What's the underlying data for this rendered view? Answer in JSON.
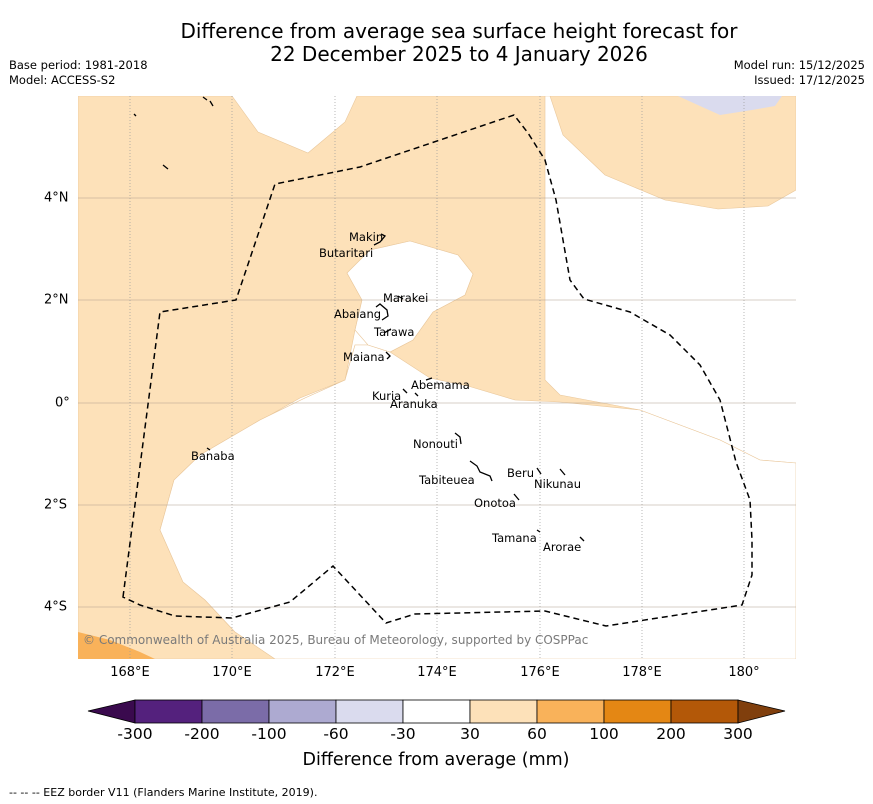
{
  "title": {
    "line1": "Difference from average sea surface height forecast for",
    "line2": "22 December 2025 to 4 January 2026"
  },
  "meta_left": {
    "base_period": "Base period: 1981-2018",
    "model": "Model: ACCESS-S2"
  },
  "meta_right": {
    "model_run": "Model run: 15/12/2025",
    "issued": "Issued: 17/12/2025"
  },
  "map": {
    "lon_ticks": [
      "168°E",
      "170°E",
      "172°E",
      "174°E",
      "176°E",
      "178°E",
      "180°"
    ],
    "lat_ticks": [
      "4°N",
      "2°N",
      "0°",
      "2°S",
      "4°S"
    ],
    "islands": [
      "Makin",
      "Butaritari",
      "Marakei",
      "Abaiang",
      "Tarawa",
      "Maiana",
      "Abemama",
      "Kuria",
      "Aranuka",
      "Nonouti",
      "Banaba",
      "Tabiteuea",
      "Beru",
      "Nikunau",
      "Onotoa",
      "Tamana",
      "Arorae"
    ],
    "copyright": "© Commonwealth of Australia 2025, Bureau of Meteorology, supported by COSPPac"
  },
  "colorbar": {
    "labels": [
      "-300",
      "-200",
      "-100",
      "-60",
      "-30",
      "30",
      "60",
      "100",
      "200",
      "300"
    ],
    "colors": [
      "#3a0a4e",
      "#54217d",
      "#7b6ca8",
      "#adaad1",
      "#dadbee",
      "#ffffff",
      "#fde1b9",
      "#f9b25a",
      "#e48714",
      "#b35808",
      "#803f0d"
    ],
    "title": "Difference from average (mm)"
  },
  "footnote": "--  --  -- EEZ border V11 (Flanders Marine Institute, 2019)."
}
